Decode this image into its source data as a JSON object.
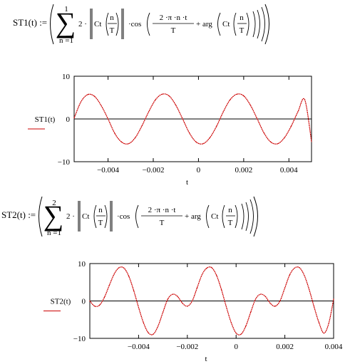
{
  "formulas": [
    {
      "lhs": "ST1(t) :=",
      "sum_upper": "1",
      "sum_lower": "n =1",
      "coef": "2 ·",
      "abs_fn": "Ct",
      "frac_num": "n",
      "frac_den": "T",
      "cos": "·cos",
      "arg_num": "2 ·π ·n ·t",
      "arg_den": "T",
      "plus_arg": "+ arg",
      "arg_fn": "Ct"
    },
    {
      "lhs": "ST2(t) :=",
      "sum_upper": "2",
      "sum_lower": "n =1",
      "coef": "2 ·",
      "abs_fn": "Ct",
      "frac_num": "n",
      "frac_den": "T",
      "cos": "·cos",
      "arg_num": "2 ·π ·n ·t",
      "arg_den": "T",
      "plus_arg": "+ arg",
      "arg_fn": "Ct"
    }
  ],
  "colors": {
    "trace": "#cc0000",
    "axis": "#000000"
  },
  "chart_data": [
    {
      "type": "line",
      "ylabel": "ST1(t)",
      "xlabel": "t",
      "xlim": [
        -0.0055,
        0.005
      ],
      "ylim": [
        -10,
        10
      ],
      "x_ticks": [
        -0.004,
        -0.002,
        0,
        0.002,
        0.004
      ],
      "x_tick_labels": [
        "−0.004",
        "−0.002",
        "0",
        "0.002",
        "0.004"
      ],
      "y_ticks": [
        10,
        0,
        -10
      ],
      "y_tick_labels": [
        "10",
        "0",
        "−10"
      ],
      "series": [
        {
          "x": [
            -0.0055,
            -0.0052,
            -0.0049,
            -0.0046,
            -0.0043,
            -0.004,
            -0.0037,
            -0.0034,
            -0.0031,
            -0.0028,
            -0.0025,
            -0.0022,
            -0.0019,
            -0.0016,
            -0.0013,
            -0.001,
            -0.0007,
            -0.0004,
            -0.0001,
            0.0002,
            0.0005,
            0.0008,
            0.0011,
            0.0014,
            0.0017,
            0.002,
            0.0023,
            0.0026,
            0.0029,
            0.0032,
            0.0035,
            0.0038,
            0.0041,
            0.0044,
            0.0047,
            0.005
          ],
          "y": [
            0.2,
            4.0,
            5.7,
            5.3,
            3.1,
            0.0,
            -3.4,
            -5.4,
            -5.8,
            -4.4,
            -1.6,
            1.7,
            4.5,
            5.8,
            5.4,
            3.2,
            0.0,
            -3.3,
            -5.4,
            -5.8,
            -4.4,
            -1.7,
            1.7,
            4.5,
            5.8,
            5.4,
            3.2,
            0.0,
            -3.3,
            -5.4,
            -5.8,
            -4.4,
            -1.7,
            1.7,
            4.5,
            -5.3
          ]
        }
      ]
    },
    {
      "type": "line",
      "ylabel": "ST2(t)",
      "xlabel": "t",
      "xlim": [
        -0.006,
        0.004
      ],
      "ylim": [
        -10,
        10
      ],
      "x_ticks": [
        -0.004,
        -0.002,
        0,
        0.002,
        0.004
      ],
      "x_tick_labels": [
        "−0.004",
        "−0.002",
        "0",
        "0.002",
        "0.004"
      ],
      "y_ticks": [
        10,
        0,
        -10
      ],
      "y_tick_labels": [
        "10",
        "0",
        "−10"
      ],
      "series": [
        {
          "x": [
            -0.006,
            -0.0058,
            -0.0056,
            -0.0054,
            -0.0052,
            -0.005,
            -0.0048,
            -0.0046,
            -0.0044,
            -0.0042,
            -0.004,
            -0.0038,
            -0.0036,
            -0.0034,
            -0.0032,
            -0.003,
            -0.0028,
            -0.0026,
            -0.0024,
            -0.0022,
            -0.002,
            -0.0018,
            -0.0016,
            -0.0014,
            -0.0012,
            -0.001,
            -0.0008,
            -0.0006,
            -0.0004,
            -0.0002,
            0.0,
            0.0002,
            0.0004,
            0.0006,
            0.0008,
            0.001,
            0.0012,
            0.0014,
            0.0016,
            0.0018,
            0.002,
            0.0022,
            0.0024,
            0.0026,
            0.0028,
            0.003,
            0.0032,
            0.0034,
            0.0036,
            0.0038,
            0.004
          ],
          "y": [
            0.0,
            -1.4,
            -1.1,
            1.0,
            4.2,
            7.2,
            8.9,
            8.8,
            6.6,
            2.8,
            -1.7,
            -5.8,
            -8.5,
            -8.9,
            -6.7,
            -3.0,
            0.5,
            1.8,
            1.2,
            -0.6,
            -1.4,
            0.0,
            3.5,
            7.0,
            8.8,
            8.9,
            6.8,
            3.0,
            -1.6,
            -5.8,
            -8.6,
            -8.9,
            -6.7,
            -3.0,
            0.5,
            1.8,
            1.2,
            -0.6,
            -1.4,
            0.0,
            3.5,
            7.0,
            8.8,
            8.9,
            6.8,
            3.0,
            -1.6,
            -5.8,
            -8.6,
            -6.0,
            0.5
          ]
        }
      ]
    }
  ]
}
